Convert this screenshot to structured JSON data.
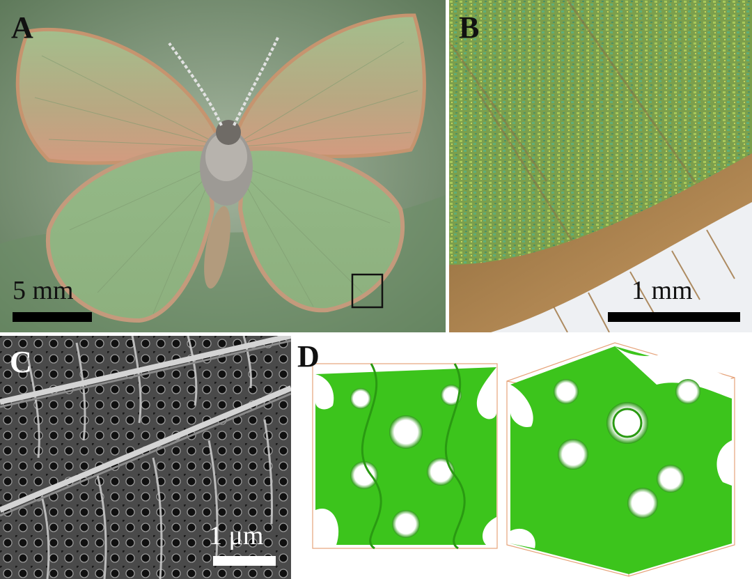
{
  "panels": {
    "a": {
      "label": "A",
      "scale_text": "5 mm",
      "colors": {
        "background": "#8fa48a",
        "wing": "#98b886",
        "wing_edge": "#c4997a",
        "body": "#a8a29a"
      }
    },
    "b": {
      "label": "B",
      "scale_text": "1 mm",
      "colors": {
        "scales": "#7ea84a",
        "fringe": "#a57a3e",
        "background": "#eef0f3"
      }
    },
    "c": {
      "label": "C",
      "scale_text": "1 μm",
      "colors": {
        "background": "#2f2f2f",
        "ridge": "#bdbdbd",
        "pore": "#121212"
      }
    },
    "d": {
      "label": "D",
      "colors": {
        "surface": "#3cc41c",
        "surface_shade": "#2a9a12",
        "frame": "#e6a37a"
      }
    }
  }
}
